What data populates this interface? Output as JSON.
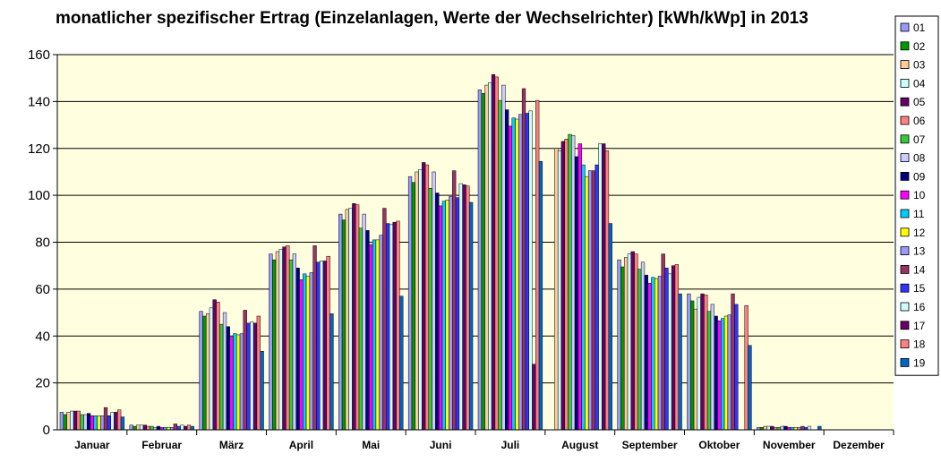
{
  "chart_data": {
    "type": "bar",
    "title": "monatlicher spezifischer Ertrag (Einzelanlagen, Werte der Wechselrichter) [kWh/kWp] in 2013",
    "xlabel": "",
    "ylabel": "",
    "ylim": [
      0,
      160
    ],
    "yticks": [
      0,
      20,
      40,
      60,
      80,
      100,
      120,
      140,
      160
    ],
    "grid": true,
    "legend_position": "right",
    "plot_background": "#ffffe0",
    "categories": [
      "Januar",
      "Februar",
      "März",
      "April",
      "Mai",
      "Juni",
      "Juli",
      "August",
      "September",
      "Oktober",
      "November",
      "Dezember"
    ],
    "series": [
      {
        "name": "01",
        "color": "#9999ff",
        "values": [
          7.5,
          2,
          50.5,
          75,
          92,
          108,
          145,
          null,
          72.5,
          58,
          1,
          0
        ]
      },
      {
        "name": "02",
        "color": "#009900",
        "values": [
          6.5,
          1.5,
          48.5,
          72.5,
          89.5,
          105.5,
          143.5,
          null,
          69.5,
          55,
          1,
          0
        ]
      },
      {
        "name": "03",
        "color": "#ffcc99",
        "values": [
          7.5,
          2,
          49.5,
          76,
          94,
          110,
          147,
          120,
          73.5,
          51.5,
          1.5,
          0
        ]
      },
      {
        "name": "04",
        "color": "#ccffff",
        "values": [
          8,
          2,
          52,
          77,
          94.5,
          111,
          148,
          119,
          75,
          56.5,
          1.5,
          0
        ]
      },
      {
        "name": "05",
        "color": "#660066",
        "values": [
          8,
          2,
          55.5,
          78,
          96.5,
          114,
          151.5,
          123,
          76,
          58,
          1.5,
          0
        ]
      },
      {
        "name": "06",
        "color": "#ff8080",
        "values": [
          8,
          1.5,
          54.5,
          78.5,
          96,
          113,
          150.5,
          124,
          75,
          57.5,
          1,
          0
        ]
      },
      {
        "name": "07",
        "color": "#33cc33",
        "values": [
          6.5,
          1.5,
          45,
          72.5,
          86,
          103,
          140.5,
          126,
          68.5,
          50.5,
          1,
          0
        ]
      },
      {
        "name": "08",
        "color": "#ccccff",
        "values": [
          6.5,
          1,
          50,
          75,
          92,
          110,
          147,
          125.5,
          71.5,
          53.5,
          1.5,
          0
        ]
      },
      {
        "name": "09",
        "color": "#000080",
        "values": [
          7,
          1.5,
          44,
          69,
          85,
          101,
          136.5,
          116.5,
          66,
          48.5,
          1.5,
          0
        ]
      },
      {
        "name": "10",
        "color": "#ff00ff",
        "values": [
          6,
          1,
          39.5,
          64,
          79,
          95.5,
          129.5,
          122,
          62.5,
          46.5,
          1,
          0
        ]
      },
      {
        "name": "11",
        "color": "#00ccff",
        "values": [
          6,
          1,
          41,
          66.5,
          81,
          97.5,
          133,
          113,
          65,
          47.5,
          1,
          0
        ]
      },
      {
        "name": "12",
        "color": "#ffff00",
        "values": [
          6,
          1,
          40.5,
          65.5,
          81,
          98,
          132.5,
          108,
          64.5,
          48.5,
          1,
          0
        ]
      },
      {
        "name": "13",
        "color": "#9999ff",
        "values": [
          6,
          1,
          41,
          67,
          83,
          99.5,
          134.5,
          110.5,
          65.5,
          49,
          1,
          0
        ]
      },
      {
        "name": "14",
        "color": "#993366",
        "values": [
          9.5,
          2.5,
          51,
          78.5,
          94.5,
          110.5,
          145.5,
          110.5,
          75,
          58,
          1.5,
          0
        ]
      },
      {
        "name": "15",
        "color": "#3333ff",
        "values": [
          6,
          1.5,
          45.5,
          71.5,
          88,
          99,
          135,
          113,
          69,
          53.5,
          1,
          0
        ]
      },
      {
        "name": "16",
        "color": "#ccffff",
        "values": [
          7.5,
          2,
          46,
          72,
          87.5,
          105,
          136,
          122,
          66.5,
          null,
          1.5,
          0
        ]
      },
      {
        "name": "17",
        "color": "#660066",
        "values": [
          7.5,
          1.5,
          45.5,
          72,
          88.5,
          104.5,
          28,
          122,
          70,
          null,
          null,
          0
        ]
      },
      {
        "name": "18",
        "color": "#ff8080",
        "values": [
          8.5,
          2,
          48.5,
          74,
          89,
          104,
          140.5,
          119,
          70.5,
          53,
          null,
          0
        ]
      },
      {
        "name": "19",
        "color": "#0066cc",
        "values": [
          5.5,
          1.5,
          33.5,
          49.5,
          57,
          97,
          114.5,
          88,
          58,
          36,
          1.5,
          0
        ]
      }
    ]
  }
}
